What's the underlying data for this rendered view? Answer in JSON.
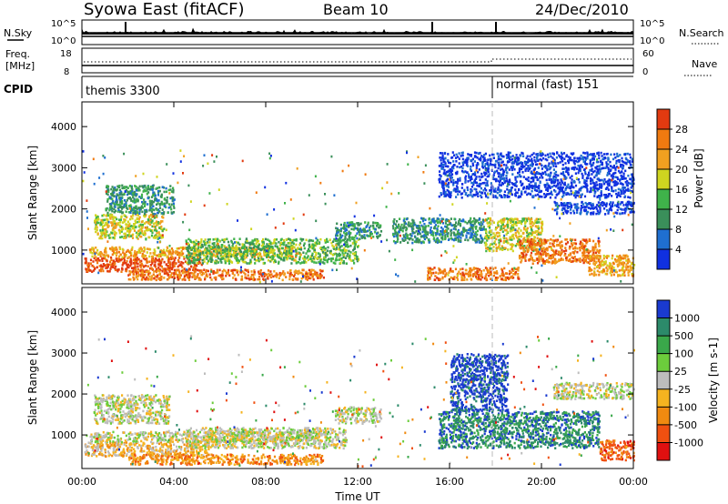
{
  "header": {
    "title": "Syowa East (fitACF)",
    "beam": "Beam 10",
    "date": "24/Dec/2010"
  },
  "strip_panels": {
    "nsky_label": "N.Sky",
    "nsearch_label": "N.Search",
    "left_ticks_top": [
      "10^5",
      "10^0"
    ],
    "right_ticks_top": [
      "10^5",
      "10^0"
    ],
    "freq_label_1": "Freq.",
    "freq_label_2": "[MHz]",
    "freq_ticks": [
      "18",
      "8"
    ],
    "nave_label": "Nave",
    "nave_ticks": [
      "60",
      "0"
    ],
    "cpid_label": "CPID",
    "cpid_modes": [
      {
        "name": "themis 3300"
      },
      {
        "name": "normal (fast) 151"
      }
    ]
  },
  "chart_data": [
    {
      "type": "heatmap",
      "title": "",
      "xlabel": "Time UT",
      "ylabel": "Slant Range [km]",
      "xlim": [
        0,
        24
      ],
      "ylim": [
        180,
        4600
      ],
      "x_ticks": [
        "00:00",
        "04:00",
        "08:00",
        "12:00",
        "16:00",
        "20:00",
        "00:00"
      ],
      "y_ticks": [
        "1000",
        "2000",
        "3000",
        "4000"
      ],
      "y_tick_values": [
        1000,
        2000,
        3000,
        4000
      ],
      "colorbar": {
        "label": "Power [dB]",
        "ticks": [
          "4",
          "8",
          "12",
          "16",
          "20",
          "24",
          "28"
        ],
        "colors": [
          "#1030e0",
          "#1f6fd0",
          "#3a8f5a",
          "#3fb24a",
          "#cfd520",
          "#f0a020",
          "#f07a10",
          "#e23a10"
        ]
      },
      "regions": [
        {
          "t0": 0.1,
          "t1": 5.2,
          "r0": 500,
          "r1": 850,
          "level": 7
        },
        {
          "t0": 0.3,
          "t1": 9.5,
          "r0": 850,
          "r1": 1100,
          "level": 5
        },
        {
          "t0": 0.5,
          "t1": 3.5,
          "r0": 1300,
          "r1": 1900,
          "level": 4
        },
        {
          "t0": 2.0,
          "t1": 10.5,
          "r0": 300,
          "r1": 550,
          "level": 6
        },
        {
          "t0": 1.0,
          "t1": 4.0,
          "r0": 1900,
          "r1": 2600,
          "level": 2
        },
        {
          "t0": 4.5,
          "t1": 12.0,
          "r0": 700,
          "r1": 1300,
          "level": 3
        },
        {
          "t0": 11.0,
          "t1": 13.0,
          "r0": 1300,
          "r1": 1700,
          "level": 2
        },
        {
          "t0": 13.5,
          "t1": 17.5,
          "r0": 1200,
          "r1": 1800,
          "level": 2
        },
        {
          "t0": 15.0,
          "t1": 19.0,
          "r0": 300,
          "r1": 600,
          "level": 6
        },
        {
          "t0": 17.5,
          "t1": 20.0,
          "r0": 1000,
          "r1": 1800,
          "level": 4
        },
        {
          "t0": 19.0,
          "t1": 22.5,
          "r0": 700,
          "r1": 1300,
          "level": 6
        },
        {
          "t0": 22.0,
          "t1": 24.0,
          "r0": 400,
          "r1": 900,
          "level": 5
        },
        {
          "t0": 20.5,
          "t1": 24.0,
          "r0": 1900,
          "r1": 2200,
          "level": 0
        },
        {
          "t0": 15.5,
          "t1": 24.0,
          "r0": 2300,
          "r1": 3400,
          "level": 0
        }
      ]
    },
    {
      "type": "heatmap",
      "title": "",
      "xlabel": "Time UT",
      "ylabel": "Slant Range [km]",
      "xlim": [
        0,
        24
      ],
      "ylim": [
        180,
        4600
      ],
      "x_ticks": [
        "00:00",
        "04:00",
        "08:00",
        "12:00",
        "16:00",
        "20:00",
        "00:00"
      ],
      "y_ticks": [
        "1000",
        "2000",
        "3000",
        "4000"
      ],
      "y_tick_values": [
        1000,
        2000,
        3000,
        4000
      ],
      "colorbar": {
        "label": "Velocity [m s-1]",
        "ticks": [
          "1000",
          "500",
          "100",
          "25",
          "-25",
          "-100",
          "-500",
          "-1000"
        ],
        "colors": [
          "#1a3ad0",
          "#2c8a6a",
          "#3aa84a",
          "#6ccc3c",
          "#bdbdbd",
          "#f5b320",
          "#f08a10",
          "#f05010",
          "#e01010"
        ]
      },
      "regions": [
        {
          "t0": 0.1,
          "t1": 5.5,
          "r0": 500,
          "r1": 850,
          "level": 5
        },
        {
          "t0": 0.3,
          "t1": 10.5,
          "r0": 850,
          "r1": 1100,
          "level": 4
        },
        {
          "t0": 0.5,
          "t1": 3.8,
          "r0": 1300,
          "r1": 2000,
          "level": 4
        },
        {
          "t0": 2.0,
          "t1": 10.5,
          "r0": 300,
          "r1": 550,
          "level": 6
        },
        {
          "t0": 4.5,
          "t1": 11.5,
          "r0": 700,
          "r1": 1200,
          "level": 4
        },
        {
          "t0": 11.0,
          "t1": 13.0,
          "r0": 1300,
          "r1": 1700,
          "level": 4
        },
        {
          "t0": 15.5,
          "t1": 22.5,
          "r0": 700,
          "r1": 1600,
          "level": 1
        },
        {
          "t0": 16.0,
          "t1": 18.5,
          "r0": 1600,
          "r1": 3000,
          "level": 0
        },
        {
          "t0": 20.5,
          "t1": 24.0,
          "r0": 1900,
          "r1": 2300,
          "level": 4
        },
        {
          "t0": 22.5,
          "t1": 24.0,
          "r0": 400,
          "r1": 900,
          "level": 7
        }
      ]
    }
  ]
}
